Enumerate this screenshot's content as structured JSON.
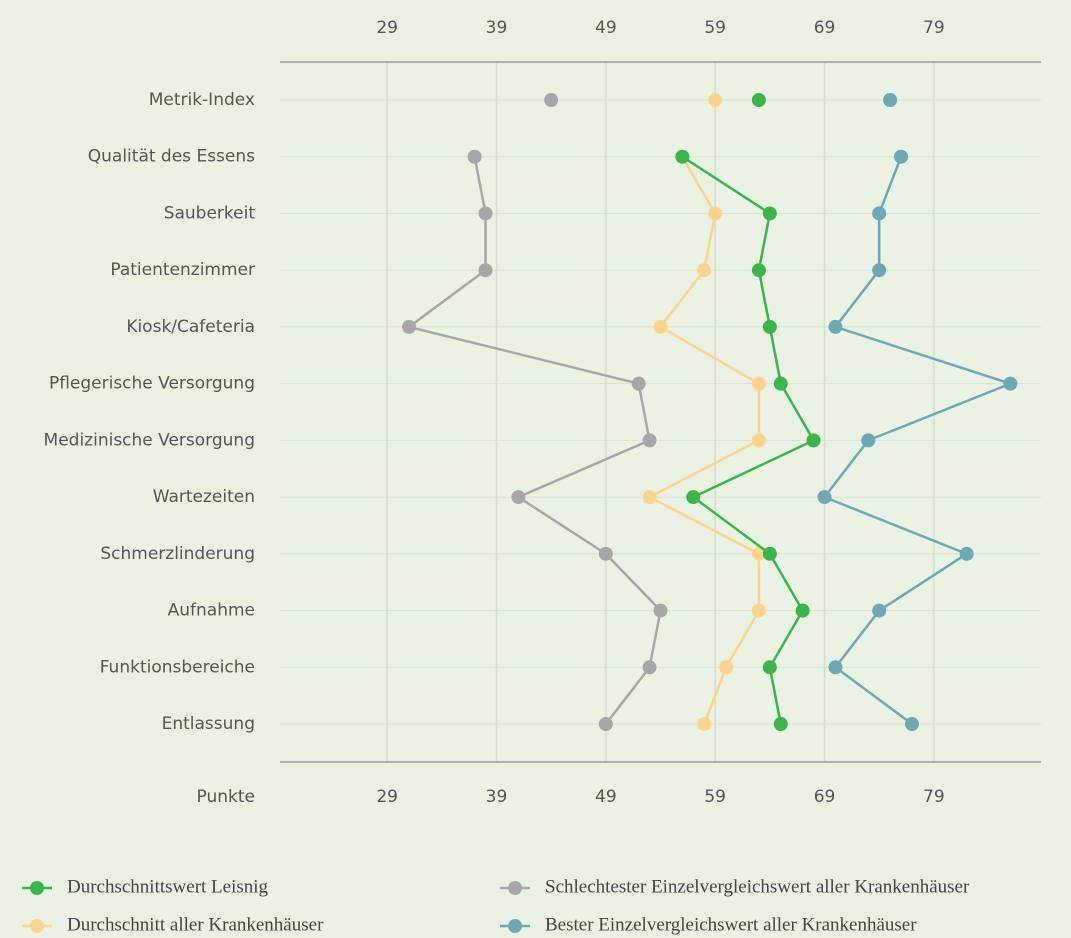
{
  "chart_data": {
    "type": "line",
    "x_label": "Punkte",
    "index_category": "Metrik-Index",
    "categories": [
      "Qualität des Essens",
      "Sauberkeit",
      "Patientenzimmer",
      "Kiosk/Cafeteria",
      "Pflegerische Versorgung",
      "Medizinische Versorgung",
      "Wartezeiten",
      "Schmerzlinderung",
      "Aufnahme",
      "Funktionsbereiche",
      "Entlassung"
    ],
    "series": [
      {
        "name": "Durchschnittswert Leisnig",
        "color": "#3cb44b",
        "index_value": 63,
        "values": [
          56,
          64,
          63,
          64,
          65,
          68,
          57,
          64,
          67,
          64,
          65
        ]
      },
      {
        "name": "Durchschnitt aller Krankenhäuser",
        "color": "#fdd38f",
        "index_value": 59,
        "values": [
          56,
          59,
          58,
          54,
          63,
          63,
          53,
          63,
          63,
          60,
          58
        ]
      },
      {
        "name": "Schlechtester Einzelvergleichswert aller Krankenhäuser",
        "color": "#a7a7a9",
        "index_value": 44,
        "values": [
          37,
          38,
          38,
          31,
          52,
          53,
          41,
          49,
          54,
          53,
          49
        ]
      },
      {
        "name": "Bester Einzelvergleichswert aller Krankenhäuser",
        "color": "#6fa8b3",
        "index_value": 75,
        "values": [
          76,
          74,
          74,
          70,
          86,
          73,
          69,
          82,
          74,
          70,
          77
        ]
      }
    ],
    "xlim": [
      19.2,
      88.8
    ],
    "xticks": [
      29,
      39,
      49,
      59,
      69,
      79
    ],
    "grid": true,
    "legend": "bottom"
  }
}
